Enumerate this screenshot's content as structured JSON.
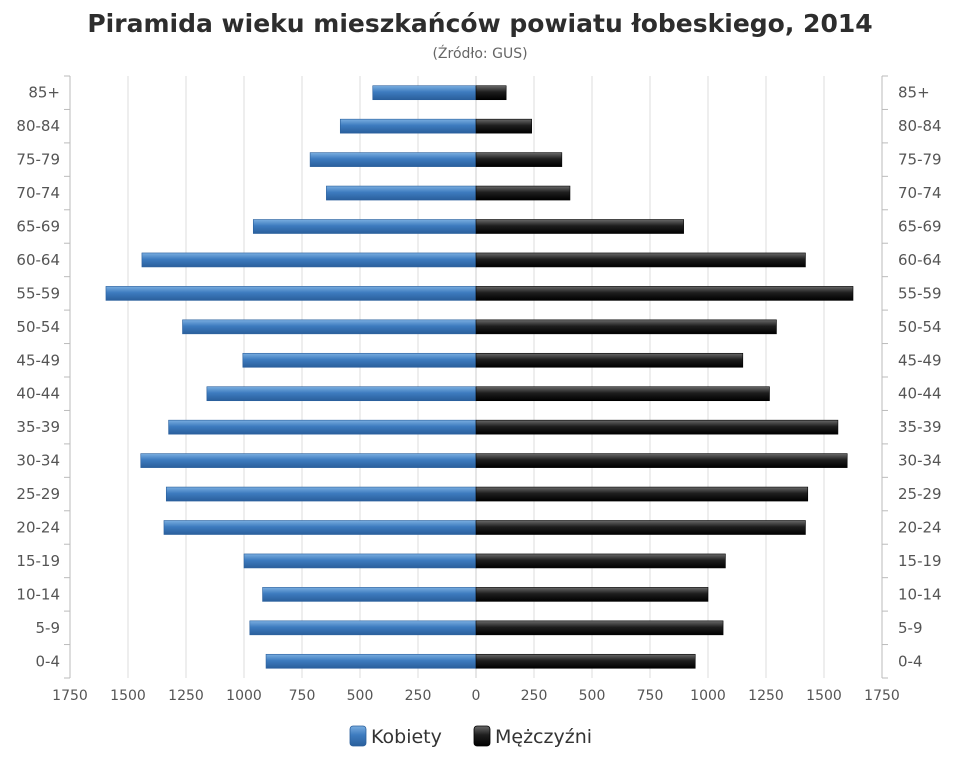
{
  "chart_data": {
    "type": "bar",
    "orientation": "horizontal-population-pyramid",
    "title": "Piramida wieku mieszkańców powiatu łobeskiego, 2014",
    "subtitle": "(Źródło: GUS)",
    "categories": [
      "85+",
      "80-84",
      "75-79",
      "70-74",
      "65-69",
      "60-64",
      "55-59",
      "50-54",
      "45-49",
      "40-44",
      "35-39",
      "30-34",
      "25-29",
      "20-24",
      "15-19",
      "10-14",
      "5-9",
      "0-4"
    ],
    "series": [
      {
        "name": "Kobiety",
        "color": "#3d7bbf",
        "side": "left",
        "values": [
          445,
          585,
          715,
          645,
          960,
          1440,
          1595,
          1265,
          1005,
          1160,
          1325,
          1445,
          1335,
          1345,
          1000,
          920,
          975,
          905
        ]
      },
      {
        "name": "Mężczyźni",
        "color": "#1e1e1e",
        "side": "right",
        "values": [
          130,
          240,
          370,
          405,
          895,
          1420,
          1625,
          1295,
          1150,
          1265,
          1560,
          1600,
          1430,
          1420,
          1075,
          1000,
          1065,
          945
        ]
      }
    ],
    "xlim": [
      -1750,
      1750
    ],
    "x_ticks": [
      -1750,
      -1500,
      -1250,
      -1000,
      -750,
      -500,
      -250,
      0,
      250,
      500,
      750,
      1000,
      1250,
      1500,
      1750
    ],
    "x_tick_labels": [
      "1750",
      "1500",
      "1250",
      "1000",
      "750",
      "500",
      "250",
      "0",
      "250",
      "500",
      "750",
      "1000",
      "1250",
      "1500",
      "1750"
    ],
    "grid": true,
    "legend_position": "bottom-center"
  }
}
